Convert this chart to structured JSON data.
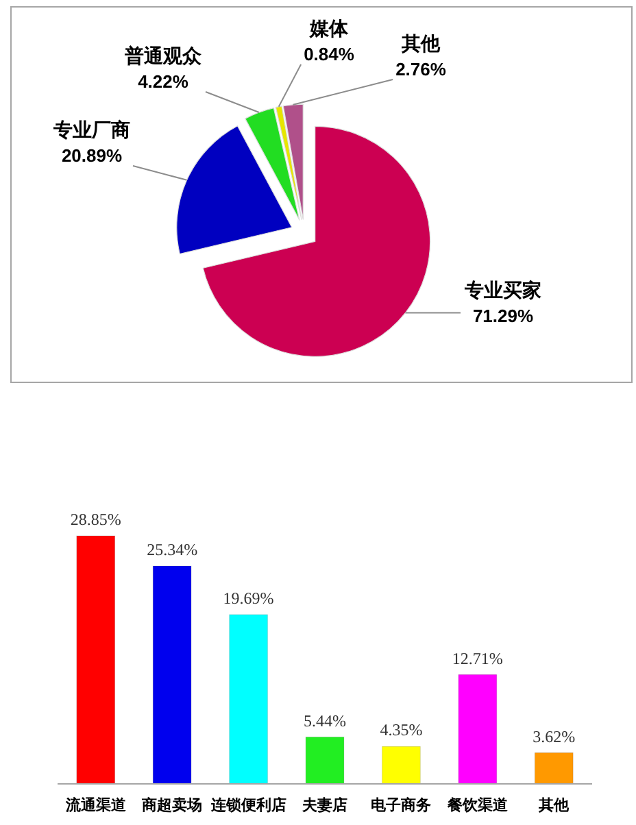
{
  "chart_data": [
    {
      "type": "pie",
      "categories": [
        "专业买家",
        "专业厂商",
        "普通观众",
        "媒体",
        "其他"
      ],
      "values": [
        71.29,
        20.89,
        4.22,
        0.84,
        2.76
      ],
      "colors": [
        "#cc0052",
        "#0000c0",
        "#22dd22",
        "#e6e600",
        "#b0508a"
      ],
      "value_labels": [
        "71.29%",
        "20.89%",
        "4.22%",
        "0.84%",
        "2.76%"
      ]
    },
    {
      "type": "bar",
      "categories": [
        "流通渠道",
        "商超卖场",
        "连锁便利店",
        "夫妻店",
        "电子商务",
        "餐饮渠道",
        "其他"
      ],
      "values": [
        28.85,
        25.34,
        19.69,
        5.44,
        4.35,
        12.71,
        3.62
      ],
      "colors": [
        "#ff0000",
        "#0000ee",
        "#00ffff",
        "#22ee22",
        "#ffff00",
        "#ff00ff",
        "#ff9900"
      ],
      "value_labels": [
        "28.85%",
        "25.34%",
        "19.69%",
        "5.44%",
        "4.35%",
        "12.71%",
        "3.62%"
      ]
    }
  ]
}
